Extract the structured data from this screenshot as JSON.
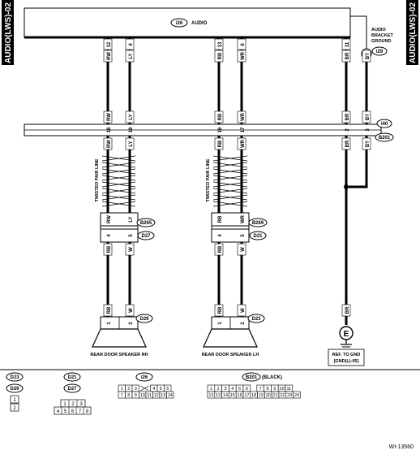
{
  "side_tabs": {
    "left": "AUDIO(LWS)-02",
    "right": "AUDIO(LWS)-02"
  },
  "audio_unit": {
    "connector": "i26",
    "label": "AUDIO"
  },
  "bracket": {
    "label_line1": "AUDIO",
    "label_line2": "BRACKET",
    "label_line3": "GROUND",
    "connector": "i29"
  },
  "connectors": {
    "i40": "i40",
    "b201": "B201",
    "b265": "B265",
    "d27": "D27",
    "d29": "D29",
    "b269": "B269",
    "d21": "D21",
    "d23": "D23"
  },
  "wires": {
    "w1": {
      "pin_top": "12",
      "color": "RW",
      "pin_i40": "18",
      "pin_b265": "4",
      "color_b": "RB",
      "pin_spk": "1",
      "color_spk": "RB"
    },
    "w2": {
      "pin_top": "4",
      "color": "LY",
      "pin_i40": "19",
      "pin_b265": "5",
      "color_b": "W",
      "pin_spk": "2",
      "color_spk": "W"
    },
    "w3": {
      "pin_top": "13",
      "color": "RB",
      "pin_i40": "16",
      "pin_b269": "4",
      "color_b": "RB",
      "pin_spk": "1",
      "color_spk": "RB"
    },
    "w4": {
      "pin_top": "6",
      "color": "WR",
      "pin_i40": "17",
      "pin_b269": "5",
      "color_b": "W",
      "pin_spk": "2",
      "color_spk": "W"
    },
    "w5": {
      "pin_top": "11",
      "color": "BR",
      "pin_i40": "2",
      "color_low": "BR"
    },
    "w6": {
      "pin_top": "1",
      "color": "BY",
      "pin_i40": "3",
      "color_low": "BY"
    }
  },
  "twisted_label": "TWISTED PAIR LINE",
  "speakers": {
    "rh": "REAR DOOR SPEAKER RH",
    "lh": "REAR DOOR SPEAKER LH"
  },
  "ground": {
    "symbol": "E",
    "ref_line1": "REF. TO GND",
    "ref_line2": "[GND(L)-05]"
  },
  "legend": {
    "d23_d29": {
      "c1": "D23",
      "c2": "D29",
      "pins": [
        "1",
        "2"
      ]
    },
    "d21_d27": {
      "c1": "D21",
      "c2": "D27",
      "row1": [
        "1",
        "2",
        "3"
      ],
      "row2": [
        "4",
        "5",
        "6",
        "7",
        "8"
      ]
    },
    "i26": {
      "c": "i26",
      "row1": [
        "1",
        "2",
        "3",
        "4",
        "5",
        "6"
      ],
      "row2": [
        "7",
        "8",
        "9",
        "10",
        "11",
        "12",
        "13",
        "14"
      ]
    },
    "b201": {
      "c": "B201",
      "note": "(BLACK)",
      "row1": [
        "1",
        "2",
        "3",
        "4",
        "5",
        "6",
        "7",
        "8",
        "9",
        "10",
        "11"
      ],
      "row2": [
        "12",
        "13",
        "14",
        "15",
        "16",
        "17",
        "18",
        "19",
        "20",
        "21",
        "22",
        "23",
        "24"
      ]
    }
  },
  "figure_id": "WI-13560"
}
